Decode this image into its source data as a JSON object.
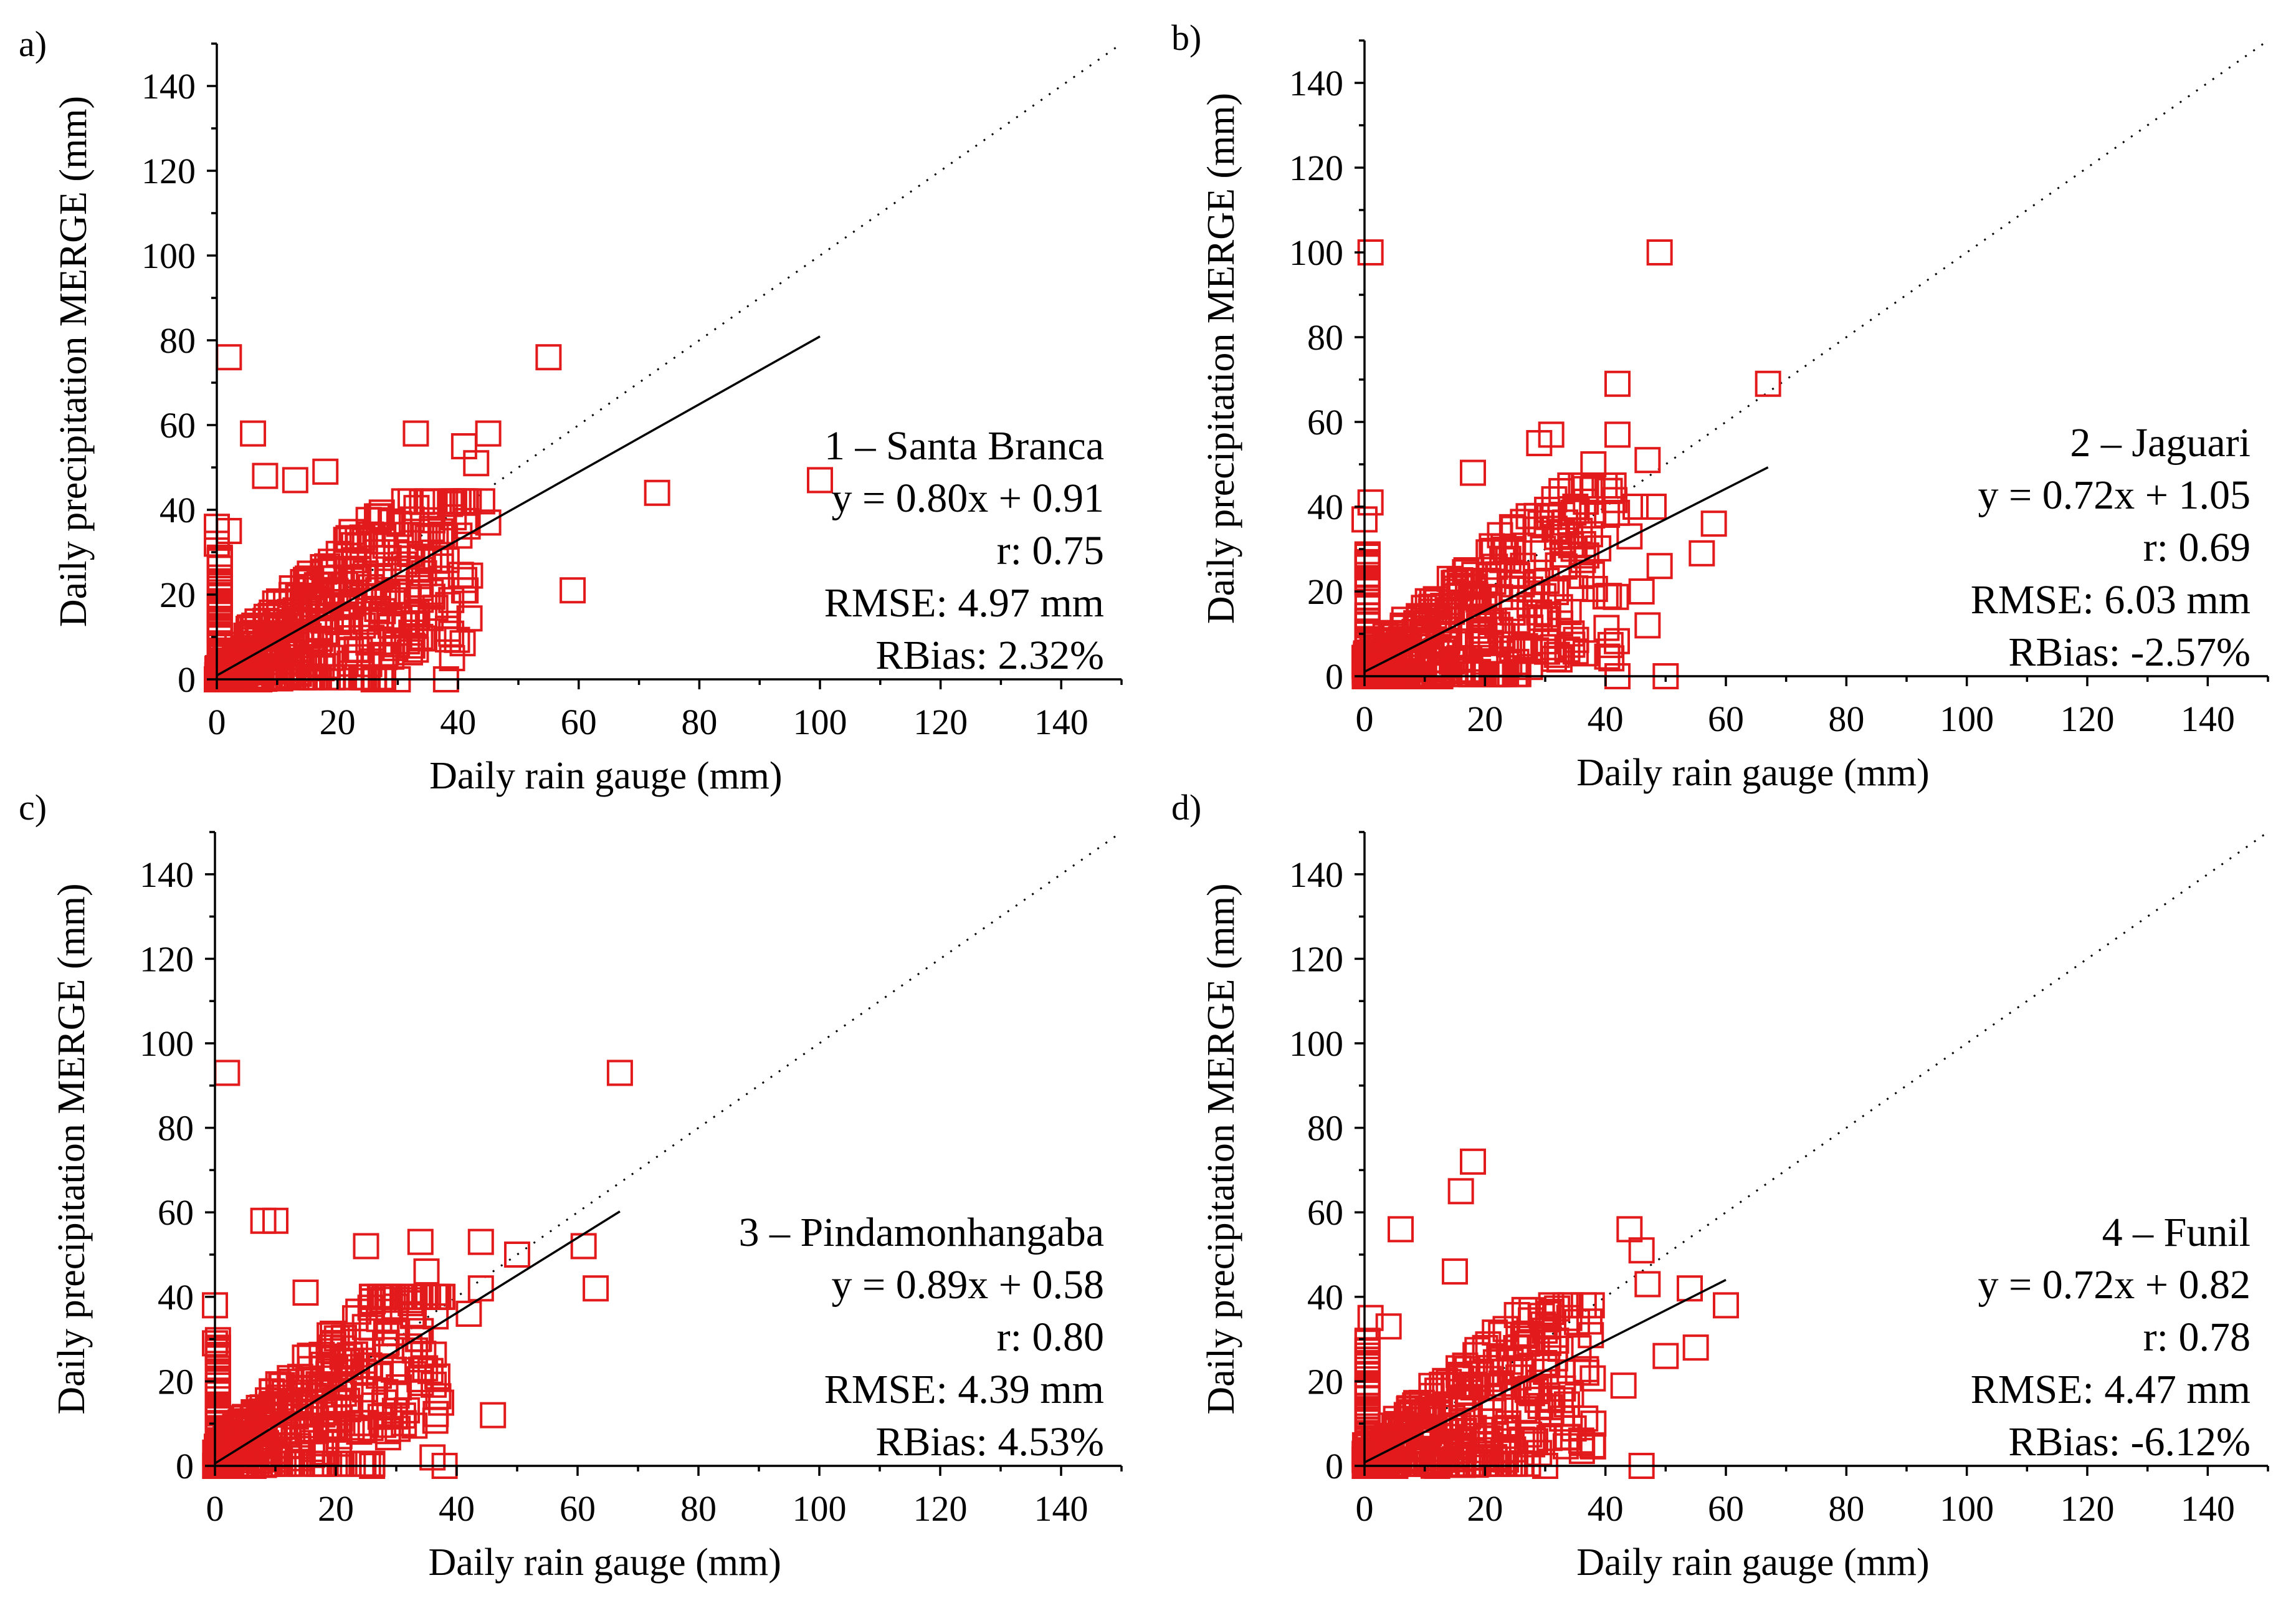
{
  "figure": {
    "marker_color": "#e31a1c",
    "marker_shape": "open-square"
  },
  "chart_data": [
    {
      "type": "scatter",
      "panel": "a)",
      "station": "1 – Santa Branca",
      "equation": "y = 0.80x + 0.91",
      "r": "r: 0.75",
      "rmse": "RMSE: 4.97 mm",
      "rbias": "RBias: 2.32%",
      "slope": 0.8,
      "intercept": 0.91,
      "fit_xmax": 100,
      "xlabel": "Daily rain gauge (mm)",
      "ylabel": "Daily precipitation MERGE (mm)",
      "xlim": [
        0,
        150
      ],
      "ylim": [
        0,
        150
      ],
      "xticks": [
        "0",
        "20",
        "40",
        "60",
        "80",
        "100",
        "120",
        "140"
      ],
      "yticks": [
        "0",
        "20",
        "40",
        "60",
        "80",
        "100",
        "120",
        "140"
      ],
      "outliers": [
        [
          2,
          76
        ],
        [
          6,
          58
        ],
        [
          8,
          48
        ],
        [
          13,
          47
        ],
        [
          18,
          49
        ],
        [
          33,
          58
        ],
        [
          41,
          55
        ],
        [
          43,
          51
        ],
        [
          45,
          58
        ],
        [
          55,
          76
        ],
        [
          73,
          44
        ],
        [
          59,
          21
        ],
        [
          100,
          47
        ],
        [
          38,
          0
        ],
        [
          39,
          5
        ],
        [
          41,
          21
        ],
        [
          45,
          37
        ],
        [
          44,
          42
        ],
        [
          33,
          7
        ],
        [
          30,
          0
        ],
        [
          2,
          0
        ],
        [
          26,
          0
        ],
        [
          0,
          36
        ],
        [
          0,
          32
        ],
        [
          2,
          35
        ]
      ],
      "cloud": {
        "n": 380,
        "xmax": 42,
        "ymax": 42,
        "seed": 11
      }
    },
    {
      "type": "scatter",
      "panel": "b)",
      "station": "2 – Jaguari",
      "equation": "y = 0.72x + 1.05",
      "r": "r: 0.69",
      "rmse": "RMSE: 6.03 mm",
      "rbias": "RBias: -2.57%",
      "slope": 0.72,
      "intercept": 1.05,
      "fit_xmax": 67,
      "xlabel": "Daily rain gauge (mm)",
      "ylabel": "Daily precipitation MERGE (mm)",
      "xlim": [
        0,
        150
      ],
      "ylim": [
        0,
        150
      ],
      "xticks": [
        "0",
        "20",
        "40",
        "60",
        "80",
        "100",
        "120",
        "140"
      ],
      "yticks": [
        "0",
        "20",
        "40",
        "60",
        "80",
        "100",
        "120",
        "140"
      ],
      "outliers": [
        [
          1,
          100
        ],
        [
          49,
          100
        ],
        [
          67,
          69
        ],
        [
          42,
          69
        ],
        [
          42,
          57
        ],
        [
          31,
          57
        ],
        [
          18,
          48
        ],
        [
          47,
          51
        ],
        [
          48,
          40
        ],
        [
          58,
          36
        ],
        [
          56,
          29
        ],
        [
          49,
          26
        ],
        [
          47,
          12
        ],
        [
          46,
          20
        ],
        [
          42,
          0
        ],
        [
          50,
          0
        ],
        [
          35,
          40
        ],
        [
          29,
          55
        ],
        [
          38,
          50
        ],
        [
          1,
          41
        ],
        [
          0,
          37
        ],
        [
          45,
          40
        ],
        [
          44,
          33
        ]
      ],
      "cloud": {
        "n": 380,
        "xmax": 42,
        "ymax": 45,
        "seed": 23
      }
    },
    {
      "type": "scatter",
      "panel": "c)",
      "station": "3 – Pindamonhangaba",
      "equation": "y = 0.89x + 0.58",
      "r": "r: 0.80",
      "rmse": "RMSE: 4.39 mm",
      "rbias": "RBias: 4.53%",
      "slope": 0.89,
      "intercept": 0.58,
      "fit_xmax": 67,
      "xlabel": "Daily rain gauge (mm)",
      "ylabel": "Daily precipitation MERGE (mm)",
      "xlim": [
        0,
        150
      ],
      "ylim": [
        0,
        150
      ],
      "xticks": [
        "0",
        "20",
        "40",
        "60",
        "80",
        "100",
        "120",
        "140"
      ],
      "yticks": [
        "0",
        "20",
        "40",
        "60",
        "80",
        "100",
        "120",
        "140"
      ],
      "outliers": [
        [
          2,
          93
        ],
        [
          67,
          93
        ],
        [
          8,
          58
        ],
        [
          10,
          58
        ],
        [
          44,
          53
        ],
        [
          34,
          53
        ],
        [
          50,
          50
        ],
        [
          61,
          52
        ],
        [
          63,
          42
        ],
        [
          46,
          12
        ],
        [
          36,
          2
        ],
        [
          38,
          0
        ],
        [
          44,
          42
        ],
        [
          42,
          36
        ],
        [
          25,
          52
        ],
        [
          26,
          0
        ],
        [
          0,
          38
        ],
        [
          0,
          29
        ],
        [
          15,
          41
        ],
        [
          35,
          46
        ],
        [
          34,
          40
        ]
      ],
      "cloud": {
        "n": 360,
        "xmax": 38,
        "ymax": 40,
        "seed": 37
      }
    },
    {
      "type": "scatter",
      "panel": "d)",
      "station": "4 – Funil",
      "equation": "y = 0.72x + 0.82",
      "r": "r: 0.78",
      "rmse": "RMSE: 4.47 mm",
      "rbias": "RBias: -6.12%",
      "slope": 0.72,
      "intercept": 0.82,
      "fit_xmax": 60,
      "xlabel": "Daily rain gauge (mm)",
      "ylabel": "Daily precipitation MERGE (mm)",
      "xlim": [
        0,
        150
      ],
      "ylim": [
        0,
        150
      ],
      "xticks": [
        "0",
        "20",
        "40",
        "60",
        "80",
        "100",
        "120",
        "140"
      ],
      "yticks": [
        "0",
        "20",
        "40",
        "60",
        "80",
        "100",
        "120",
        "140"
      ],
      "outliers": [
        [
          6,
          56
        ],
        [
          18,
          72
        ],
        [
          16,
          65
        ],
        [
          15,
          46
        ],
        [
          44,
          56
        ],
        [
          46,
          51
        ],
        [
          1,
          35
        ],
        [
          4,
          33
        ],
        [
          47,
          43
        ],
        [
          50,
          26
        ],
        [
          55,
          28
        ],
        [
          54,
          42
        ],
        [
          60,
          38
        ],
        [
          43,
          19
        ],
        [
          46,
          0
        ],
        [
          38,
          10
        ],
        [
          30,
          0
        ],
        [
          34,
          35
        ]
      ],
      "cloud": {
        "n": 330,
        "xmax": 38,
        "ymax": 38,
        "seed": 53
      }
    }
  ]
}
